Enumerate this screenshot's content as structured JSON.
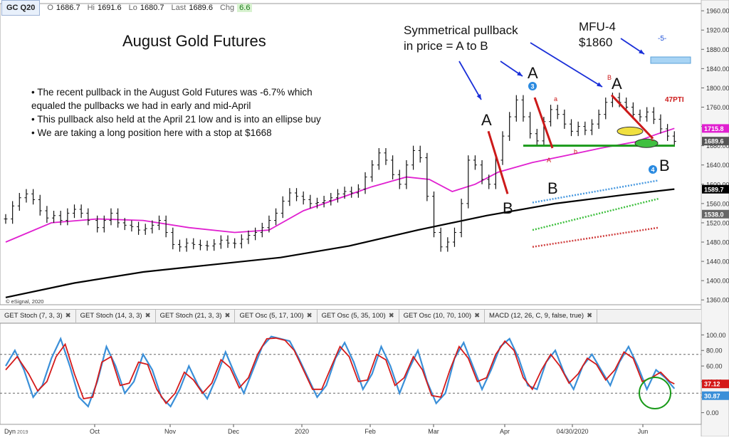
{
  "header": {
    "symbol": "GC Q20",
    "open_label": "O",
    "open": "1686.7",
    "high_label": "Hi",
    "high": "1691.6",
    "low_label": "Lo",
    "low": "1680.7",
    "last_label": "Last",
    "last": "1689.6",
    "chg_label": "Chg",
    "chg": "6.6"
  },
  "title": "August Gold Futures",
  "bullets": [
    "• The recent pullback in the August Gold Futures was -6.7% which",
    "   equaled the pullbacks we had in early and mid-April",
    "• This pullback also held at the April 21 low and is into an ellipse buy",
    "• We are taking a long position here with a stop at $1668"
  ],
  "annotations": {
    "symmetric_line1": "Symmetrical pullback",
    "symmetric_line2": "in price = A to B",
    "mfu_line1": "MFU-4",
    "mfu_line2": "$1860",
    "mfu_tag": "-5-",
    "pti": "47PTI",
    "copyright": "© eSignal, 2020",
    "wave_A": "A",
    "wave_B": "B",
    "small_a": "a",
    "small_b": "b",
    "small_c": "c",
    "small_B": "B",
    "circle_3": "3",
    "circle_4": "4"
  },
  "colors": {
    "ma_fast": "#e020d0",
    "ma_slow": "#000000",
    "stoch_k": "#3a8fd8",
    "stoch_d": "#d41a1a",
    "support": "#1a9a1a",
    "arrow": "#1a2fd8"
  },
  "tabs": [
    "GET Stoch (7, 3, 3)",
    "GET Stoch (14, 3, 3)",
    "GET Stoch (21, 3, 3)",
    "GET Osc (5, 17, 100)",
    "GET Osc (5, 35, 100)",
    "GET Osc (10, 70, 100)",
    "MACD (12, 26, C, 9, false, true)"
  ],
  "footer": {
    "dyn": "Dyn",
    "year_left": "2019"
  },
  "chart_data": {
    "type": "line",
    "title": "August Gold Futures",
    "x_ticks": [
      "Oct",
      "Nov",
      "Dec",
      "2020",
      "Feb",
      "Mar",
      "Apr",
      "04/30/2020",
      "Jun"
    ],
    "y_ticks": [
      1360,
      1400,
      1440,
      1480,
      1520,
      1560,
      1600,
      1640,
      1680,
      1720,
      1760,
      1800,
      1840,
      1880,
      1920,
      1960
    ],
    "ylim": [
      1350,
      1975
    ],
    "price_labels": [
      {
        "text": "1715.8",
        "value": 1715.8,
        "color": "#e020d0"
      },
      {
        "text": "1689.6",
        "value": 1689.6,
        "color": "#555555"
      },
      {
        "text": "1589.7",
        "value": 1589.7,
        "color": "#000000"
      },
      {
        "text": "1538.0",
        "value": 1538.0,
        "color": "#666666"
      }
    ],
    "price_series": [
      {
        "t": 0,
        "v": 1528
      },
      {
        "t": 3,
        "v": 1555
      },
      {
        "t": 6,
        "v": 1572
      },
      {
        "t": 9,
        "v": 1580
      },
      {
        "t": 12,
        "v": 1568
      },
      {
        "t": 15,
        "v": 1545
      },
      {
        "t": 18,
        "v": 1530
      },
      {
        "t": 21,
        "v": 1535
      },
      {
        "t": 24,
        "v": 1525
      },
      {
        "t": 27,
        "v": 1540
      },
      {
        "t": 30,
        "v": 1548
      },
      {
        "t": 33,
        "v": 1540
      },
      {
        "t": 36,
        "v": 1525
      },
      {
        "t": 40,
        "v": 1510
      },
      {
        "t": 43,
        "v": 1525
      },
      {
        "t": 46,
        "v": 1540
      },
      {
        "t": 49,
        "v": 1520
      },
      {
        "t": 52,
        "v": 1515
      },
      {
        "t": 55,
        "v": 1512
      },
      {
        "t": 58,
        "v": 1505
      },
      {
        "t": 61,
        "v": 1508
      },
      {
        "t": 64,
        "v": 1515
      },
      {
        "t": 67,
        "v": 1525
      },
      {
        "t": 70,
        "v": 1500
      },
      {
        "t": 73,
        "v": 1475
      },
      {
        "t": 76,
        "v": 1470
      },
      {
        "t": 79,
        "v": 1478
      },
      {
        "t": 82,
        "v": 1475
      },
      {
        "t": 85,
        "v": 1473
      },
      {
        "t": 88,
        "v": 1472
      },
      {
        "t": 91,
        "v": 1476
      },
      {
        "t": 94,
        "v": 1484
      },
      {
        "t": 97,
        "v": 1478
      },
      {
        "t": 100,
        "v": 1477
      },
      {
        "t": 103,
        "v": 1486
      },
      {
        "t": 106,
        "v": 1494
      },
      {
        "t": 109,
        "v": 1500
      },
      {
        "t": 112,
        "v": 1510
      },
      {
        "t": 115,
        "v": 1525
      },
      {
        "t": 118,
        "v": 1540
      },
      {
        "t": 121,
        "v": 1565
      },
      {
        "t": 124,
        "v": 1582
      },
      {
        "t": 127,
        "v": 1575
      },
      {
        "t": 130,
        "v": 1568
      },
      {
        "t": 133,
        "v": 1560
      },
      {
        "t": 136,
        "v": 1562
      },
      {
        "t": 139,
        "v": 1566
      },
      {
        "t": 142,
        "v": 1572
      },
      {
        "t": 145,
        "v": 1580
      },
      {
        "t": 148,
        "v": 1585
      },
      {
        "t": 151,
        "v": 1582
      },
      {
        "t": 154,
        "v": 1590
      },
      {
        "t": 157,
        "v": 1615
      },
      {
        "t": 160,
        "v": 1640
      },
      {
        "t": 163,
        "v": 1665
      },
      {
        "t": 166,
        "v": 1650
      },
      {
        "t": 169,
        "v": 1620
      },
      {
        "t": 172,
        "v": 1600
      },
      {
        "t": 175,
        "v": 1640
      },
      {
        "t": 178,
        "v": 1670
      },
      {
        "t": 181,
        "v": 1655
      },
      {
        "t": 184,
        "v": 1575
      },
      {
        "t": 187,
        "v": 1500
      },
      {
        "t": 190,
        "v": 1470
      },
      {
        "t": 193,
        "v": 1480
      },
      {
        "t": 196,
        "v": 1500
      },
      {
        "t": 199,
        "v": 1560
      },
      {
        "t": 202,
        "v": 1650
      },
      {
        "t": 205,
        "v": 1640
      },
      {
        "t": 208,
        "v": 1610
      },
      {
        "t": 211,
        "v": 1600
      },
      {
        "t": 214,
        "v": 1650
      },
      {
        "t": 217,
        "v": 1700
      },
      {
        "t": 220,
        "v": 1740
      },
      {
        "t": 223,
        "v": 1775
      },
      {
        "t": 226,
        "v": 1740
      },
      {
        "t": 229,
        "v": 1705
      },
      {
        "t": 232,
        "v": 1690
      },
      {
        "t": 235,
        "v": 1730
      },
      {
        "t": 238,
        "v": 1755
      },
      {
        "t": 241,
        "v": 1745
      },
      {
        "t": 244,
        "v": 1725
      },
      {
        "t": 247,
        "v": 1710
      },
      {
        "t": 250,
        "v": 1720
      },
      {
        "t": 253,
        "v": 1712
      },
      {
        "t": 256,
        "v": 1725
      },
      {
        "t": 259,
        "v": 1745
      },
      {
        "t": 262,
        "v": 1770
      },
      {
        "t": 265,
        "v": 1780
      },
      {
        "t": 268,
        "v": 1770
      },
      {
        "t": 271,
        "v": 1760
      },
      {
        "t": 274,
        "v": 1745
      },
      {
        "t": 277,
        "v": 1740
      },
      {
        "t": 280,
        "v": 1750
      },
      {
        "t": 283,
        "v": 1735
      },
      {
        "t": 286,
        "v": 1715
      },
      {
        "t": 289,
        "v": 1700
      },
      {
        "t": 292,
        "v": 1689
      }
    ],
    "ma_fast": [
      {
        "t": 0,
        "v": 1480
      },
      {
        "t": 20,
        "v": 1520
      },
      {
        "t": 40,
        "v": 1528
      },
      {
        "t": 60,
        "v": 1525
      },
      {
        "t": 80,
        "v": 1510
      },
      {
        "t": 100,
        "v": 1500
      },
      {
        "t": 115,
        "v": 1505
      },
      {
        "t": 130,
        "v": 1545
      },
      {
        "t": 145,
        "v": 1570
      },
      {
        "t": 160,
        "v": 1595
      },
      {
        "t": 175,
        "v": 1615
      },
      {
        "t": 185,
        "v": 1610
      },
      {
        "t": 195,
        "v": 1585
      },
      {
        "t": 205,
        "v": 1600
      },
      {
        "t": 215,
        "v": 1625
      },
      {
        "t": 230,
        "v": 1645
      },
      {
        "t": 245,
        "v": 1660
      },
      {
        "t": 260,
        "v": 1675
      },
      {
        "t": 275,
        "v": 1688
      },
      {
        "t": 285,
        "v": 1705
      },
      {
        "t": 292,
        "v": 1716
      }
    ],
    "ma_slow": [
      {
        "t": 0,
        "v": 1365
      },
      {
        "t": 30,
        "v": 1395
      },
      {
        "t": 60,
        "v": 1418
      },
      {
        "t": 90,
        "v": 1433
      },
      {
        "t": 120,
        "v": 1448
      },
      {
        "t": 150,
        "v": 1472
      },
      {
        "t": 180,
        "v": 1505
      },
      {
        "t": 210,
        "v": 1535
      },
      {
        "t": 240,
        "v": 1560
      },
      {
        "t": 270,
        "v": 1578
      },
      {
        "t": 292,
        "v": 1590
      }
    ],
    "support_level": 1680,
    "stoch_ylim": [
      -15,
      115
    ],
    "stoch_ticks": [
      0,
      20,
      40,
      60,
      80,
      100
    ],
    "stoch_k_label": "30.87",
    "stoch_d_label": "37.12",
    "stoch_k": [
      {
        "t": 0,
        "v": 60
      },
      {
        "t": 4,
        "v": 80
      },
      {
        "t": 8,
        "v": 55
      },
      {
        "t": 12,
        "v": 20
      },
      {
        "t": 16,
        "v": 35
      },
      {
        "t": 20,
        "v": 70
      },
      {
        "t": 24,
        "v": 95
      },
      {
        "t": 28,
        "v": 60
      },
      {
        "t": 32,
        "v": 20
      },
      {
        "t": 36,
        "v": 8
      },
      {
        "t": 40,
        "v": 40
      },
      {
        "t": 44,
        "v": 85
      },
      {
        "t": 48,
        "v": 60
      },
      {
        "t": 52,
        "v": 25
      },
      {
        "t": 56,
        "v": 40
      },
      {
        "t": 60,
        "v": 75
      },
      {
        "t": 64,
        "v": 55
      },
      {
        "t": 68,
        "v": 20
      },
      {
        "t": 72,
        "v": 8
      },
      {
        "t": 76,
        "v": 30
      },
      {
        "t": 80,
        "v": 60
      },
      {
        "t": 84,
        "v": 35
      },
      {
        "t": 88,
        "v": 18
      },
      {
        "t": 92,
        "v": 45
      },
      {
        "t": 96,
        "v": 78
      },
      {
        "t": 100,
        "v": 50
      },
      {
        "t": 104,
        "v": 25
      },
      {
        "t": 108,
        "v": 55
      },
      {
        "t": 112,
        "v": 85
      },
      {
        "t": 116,
        "v": 98
      },
      {
        "t": 120,
        "v": 95
      },
      {
        "t": 124,
        "v": 92
      },
      {
        "t": 128,
        "v": 70
      },
      {
        "t": 132,
        "v": 45
      },
      {
        "t": 136,
        "v": 20
      },
      {
        "t": 140,
        "v": 35
      },
      {
        "t": 144,
        "v": 70
      },
      {
        "t": 148,
        "v": 90
      },
      {
        "t": 152,
        "v": 65
      },
      {
        "t": 156,
        "v": 30
      },
      {
        "t": 160,
        "v": 50
      },
      {
        "t": 164,
        "v": 85
      },
      {
        "t": 168,
        "v": 60
      },
      {
        "t": 172,
        "v": 25
      },
      {
        "t": 176,
        "v": 55
      },
      {
        "t": 180,
        "v": 80
      },
      {
        "t": 184,
        "v": 40
      },
      {
        "t": 188,
        "v": 12
      },
      {
        "t": 192,
        "v": 25
      },
      {
        "t": 196,
        "v": 70
      },
      {
        "t": 200,
        "v": 90
      },
      {
        "t": 204,
        "v": 60
      },
      {
        "t": 208,
        "v": 30
      },
      {
        "t": 212,
        "v": 55
      },
      {
        "t": 216,
        "v": 85
      },
      {
        "t": 220,
        "v": 95
      },
      {
        "t": 224,
        "v": 70
      },
      {
        "t": 228,
        "v": 35
      },
      {
        "t": 232,
        "v": 30
      },
      {
        "t": 236,
        "v": 65
      },
      {
        "t": 240,
        "v": 80
      },
      {
        "t": 244,
        "v": 50
      },
      {
        "t": 248,
        "v": 30
      },
      {
        "t": 252,
        "v": 60
      },
      {
        "t": 256,
        "v": 75
      },
      {
        "t": 260,
        "v": 55
      },
      {
        "t": 264,
        "v": 35
      },
      {
        "t": 268,
        "v": 65
      },
      {
        "t": 272,
        "v": 85
      },
      {
        "t": 276,
        "v": 60
      },
      {
        "t": 280,
        "v": 30
      },
      {
        "t": 284,
        "v": 55
      },
      {
        "t": 288,
        "v": 45
      },
      {
        "t": 292,
        "v": 31
      }
    ],
    "stoch_d": [
      {
        "t": 0,
        "v": 55
      },
      {
        "t": 5,
        "v": 72
      },
      {
        "t": 10,
        "v": 50
      },
      {
        "t": 14,
        "v": 28
      },
      {
        "t": 18,
        "v": 40
      },
      {
        "t": 22,
        "v": 72
      },
      {
        "t": 26,
        "v": 88
      },
      {
        "t": 30,
        "v": 50
      },
      {
        "t": 34,
        "v": 18
      },
      {
        "t": 38,
        "v": 20
      },
      {
        "t": 42,
        "v": 65
      },
      {
        "t": 46,
        "v": 72
      },
      {
        "t": 50,
        "v": 35
      },
      {
        "t": 54,
        "v": 38
      },
      {
        "t": 58,
        "v": 65
      },
      {
        "t": 62,
        "v": 62
      },
      {
        "t": 66,
        "v": 30
      },
      {
        "t": 70,
        "v": 12
      },
      {
        "t": 74,
        "v": 25
      },
      {
        "t": 78,
        "v": 52
      },
      {
        "t": 82,
        "v": 42
      },
      {
        "t": 86,
        "v": 25
      },
      {
        "t": 90,
        "v": 38
      },
      {
        "t": 94,
        "v": 68
      },
      {
        "t": 98,
        "v": 58
      },
      {
        "t": 102,
        "v": 32
      },
      {
        "t": 106,
        "v": 45
      },
      {
        "t": 110,
        "v": 75
      },
      {
        "t": 114,
        "v": 95
      },
      {
        "t": 118,
        "v": 96
      },
      {
        "t": 122,
        "v": 93
      },
      {
        "t": 126,
        "v": 80
      },
      {
        "t": 130,
        "v": 55
      },
      {
        "t": 134,
        "v": 30
      },
      {
        "t": 138,
        "v": 30
      },
      {
        "t": 142,
        "v": 58
      },
      {
        "t": 146,
        "v": 85
      },
      {
        "t": 150,
        "v": 72
      },
      {
        "t": 154,
        "v": 40
      },
      {
        "t": 158,
        "v": 42
      },
      {
        "t": 162,
        "v": 75
      },
      {
        "t": 166,
        "v": 68
      },
      {
        "t": 170,
        "v": 35
      },
      {
        "t": 174,
        "v": 45
      },
      {
        "t": 178,
        "v": 72
      },
      {
        "t": 182,
        "v": 55
      },
      {
        "t": 186,
        "v": 22
      },
      {
        "t": 190,
        "v": 20
      },
      {
        "t": 194,
        "v": 55
      },
      {
        "t": 198,
        "v": 85
      },
      {
        "t": 202,
        "v": 70
      },
      {
        "t": 206,
        "v": 40
      },
      {
        "t": 210,
        "v": 45
      },
      {
        "t": 214,
        "v": 75
      },
      {
        "t": 218,
        "v": 92
      },
      {
        "t": 222,
        "v": 80
      },
      {
        "t": 226,
        "v": 45
      },
      {
        "t": 230,
        "v": 30
      },
      {
        "t": 234,
        "v": 55
      },
      {
        "t": 238,
        "v": 75
      },
      {
        "t": 242,
        "v": 60
      },
      {
        "t": 246,
        "v": 38
      },
      {
        "t": 250,
        "v": 50
      },
      {
        "t": 254,
        "v": 70
      },
      {
        "t": 258,
        "v": 62
      },
      {
        "t": 262,
        "v": 42
      },
      {
        "t": 266,
        "v": 55
      },
      {
        "t": 270,
        "v": 78
      },
      {
        "t": 274,
        "v": 70
      },
      {
        "t": 278,
        "v": 40
      },
      {
        "t": 282,
        "v": 45
      },
      {
        "t": 286,
        "v": 52
      },
      {
        "t": 290,
        "v": 40
      },
      {
        "t": 292,
        "v": 37
      }
    ]
  }
}
